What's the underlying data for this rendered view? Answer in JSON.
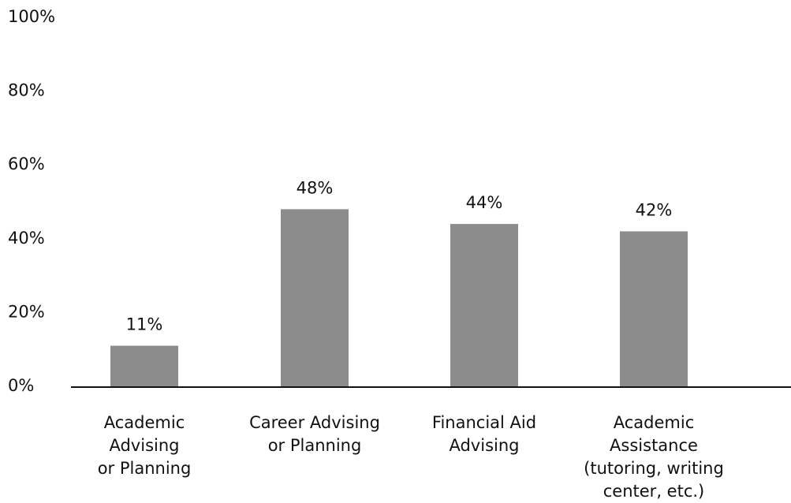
{
  "chart_data": {
    "type": "bar",
    "categories": [
      "Academic\nAdvising\nor Planning",
      "Career Advising\nor Planning",
      "Financial Aid\nAdvising",
      "Academic\nAssistance\n(tutoring, writing\ncenter, etc.)"
    ],
    "values": [
      11,
      48,
      44,
      42
    ],
    "value_labels": [
      "11%",
      "48%",
      "44%",
      "42%"
    ],
    "color": "#8c8c8c",
    "ylim": [
      0,
      100
    ],
    "yticks": [
      {
        "value": 0,
        "label": "0%"
      },
      {
        "value": 20,
        "label": "20%"
      },
      {
        "value": 40,
        "label": "40%"
      },
      {
        "value": 60,
        "label": "60%"
      },
      {
        "value": 80,
        "label": "80%"
      },
      {
        "value": 100,
        "label": "100%"
      }
    ],
    "grid": false
  }
}
